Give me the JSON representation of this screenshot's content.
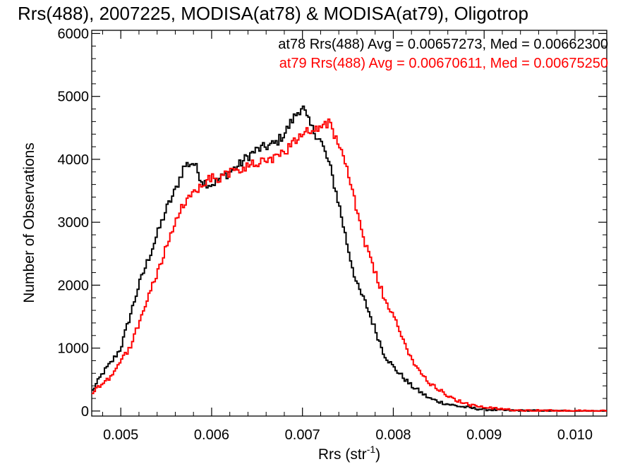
{
  "chart_data": {
    "type": "line",
    "title": "Rrs(488), 2007225, MODISA(at78) & MODISA(at79), Oligotrop",
    "xlabel": "Rrs (str",
    "xlabel_sup": "-1",
    "xlabel_close": ")",
    "ylabel": "Number of Observations",
    "xlim": [
      0.00468,
      0.01035
    ],
    "ylim": [
      -80,
      6050
    ],
    "xticks": [
      0.005,
      0.006,
      0.007,
      0.008,
      0.009,
      0.01
    ],
    "xtick_labels": [
      "0.005",
      "0.006",
      "0.007",
      "0.008",
      "0.009",
      "0.010"
    ],
    "yticks": [
      0,
      1000,
      2000,
      3000,
      4000,
      5000,
      6000
    ],
    "ytick_labels": [
      "0",
      "1000",
      "2000",
      "3000",
      "4000",
      "5000",
      "6000"
    ],
    "legend_placement": "top-right",
    "series": [
      {
        "name": "at78 Rrs(488) Avg = 0.00657273, Med = 0.00662300",
        "color": "#000000",
        "x": [
          0.00468,
          0.0048,
          0.0049,
          0.005,
          0.0051,
          0.0052,
          0.0053,
          0.0054,
          0.0055,
          0.0056,
          0.0057,
          0.0058,
          0.0059,
          0.006,
          0.0061,
          0.0062,
          0.0063,
          0.0064,
          0.0065,
          0.0066,
          0.0067,
          0.0068,
          0.0069,
          0.007,
          0.00705,
          0.0071,
          0.0072,
          0.0073,
          0.0074,
          0.0075,
          0.0076,
          0.0077,
          0.0078,
          0.0079,
          0.008,
          0.0081,
          0.0082,
          0.0083,
          0.0084,
          0.0085,
          0.0086,
          0.0087,
          0.0088,
          0.0089,
          0.009,
          0.0092,
          0.0094,
          0.0096,
          0.0098,
          0.01,
          0.01035
        ],
        "values": [
          300,
          600,
          780,
          1000,
          1500,
          2000,
          2400,
          2800,
          3200,
          3500,
          3900,
          3950,
          3650,
          3600,
          3700,
          3800,
          3900,
          4050,
          4150,
          4200,
          4250,
          4400,
          4650,
          4850,
          4650,
          4500,
          4300,
          3900,
          3300,
          2600,
          2000,
          1700,
          1300,
          900,
          700,
          550,
          400,
          300,
          200,
          150,
          110,
          80,
          60,
          40,
          25,
          12,
          6,
          3,
          1,
          0,
          0
        ]
      },
      {
        "name": "at79 Rrs(488) Avg = 0.00670611, Med = 0.00675250",
        "color": "#ff0000",
        "x": [
          0.00468,
          0.0048,
          0.0049,
          0.005,
          0.0051,
          0.0052,
          0.0053,
          0.0054,
          0.0055,
          0.0056,
          0.0057,
          0.0058,
          0.0059,
          0.006,
          0.0061,
          0.0062,
          0.0063,
          0.0064,
          0.0065,
          0.0066,
          0.0067,
          0.0068,
          0.0069,
          0.007,
          0.0071,
          0.0072,
          0.0073,
          0.0074,
          0.0075,
          0.0076,
          0.0077,
          0.0078,
          0.0079,
          0.008,
          0.0081,
          0.0082,
          0.0083,
          0.0084,
          0.0085,
          0.0086,
          0.0087,
          0.0088,
          0.0089,
          0.009,
          0.0091,
          0.0092,
          0.0094,
          0.0096,
          0.0098,
          0.01,
          0.01035
        ],
        "values": [
          280,
          450,
          560,
          800,
          1000,
          1400,
          1800,
          2200,
          2600,
          3000,
          3300,
          3450,
          3650,
          3700,
          3700,
          3800,
          3800,
          3900,
          3950,
          3950,
          4000,
          4100,
          4300,
          4400,
          4500,
          4500,
          4600,
          4200,
          3800,
          3200,
          2600,
          2200,
          1800,
          1500,
          1150,
          850,
          600,
          450,
          350,
          250,
          170,
          110,
          80,
          55,
          40,
          30,
          15,
          8,
          4,
          2,
          0
        ]
      }
    ]
  }
}
